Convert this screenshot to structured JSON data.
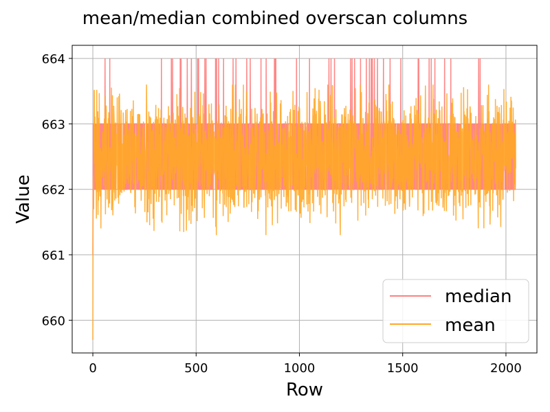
{
  "chart_data": {
    "type": "line",
    "title": "mean/median combined overscan columns",
    "xlabel": "Row",
    "ylabel": "Value",
    "xlim": [
      -100,
      2150
    ],
    "ylim": [
      659.5,
      664.2
    ],
    "xticks": [
      0,
      500,
      1000,
      1500,
      2000
    ],
    "yticks": [
      660,
      661,
      662,
      663,
      664
    ],
    "grid": true,
    "legend_position": "lower-right",
    "n_points": 2048,
    "series": [
      {
        "name": "median",
        "color": "#ff7f7f",
        "description": "integer-valued median mostly alternating between 662 and 663, with occasional spikes to 664 and initial value near 661",
        "levels": [
          661,
          662,
          663,
          664
        ],
        "start_value": 661
      },
      {
        "name": "mean",
        "color": "#ffa726",
        "description": "noisy mean roughly 661.3-663.6, starting near 659.7 at row 0",
        "start_value": 659.7,
        "range": [
          661.3,
          663.6
        ]
      }
    ]
  }
}
